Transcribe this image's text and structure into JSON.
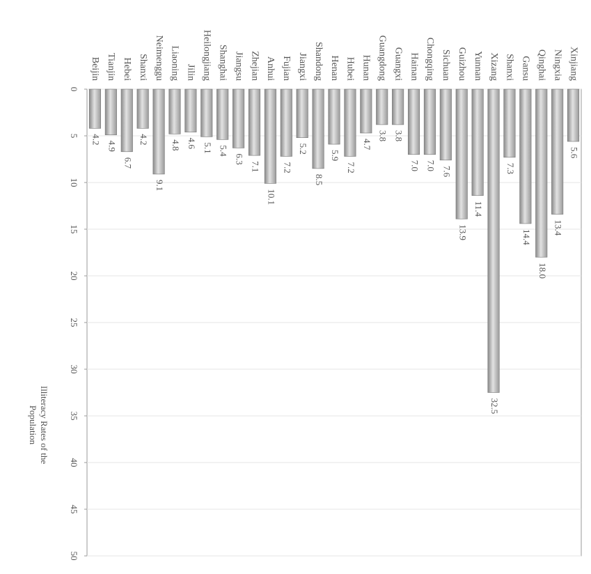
{
  "chart_data": {
    "type": "bar",
    "ylabel": [
      "Illiteracy Rates of the",
      "Population"
    ],
    "categories": [
      "Beijin",
      "Tianjin",
      "Hebei",
      "Shanxi",
      "Neimenggu",
      "Liaoning",
      "Jilin",
      "Heilongjiang",
      "Shanghai",
      "Jiangsu",
      "Zhejian",
      "Anhui",
      "Fujian",
      "Jiangxi",
      "Shandong",
      "Henan",
      "Hubei",
      "Hunan",
      "Guangdong",
      "Guangxi",
      "Hainan",
      "Chongqing",
      "Sichuan",
      "Guizhou",
      "Yunnan",
      "Xizang",
      "Shanxi",
      "Gansu",
      "Qinghai",
      "Ningxia",
      "Xinjiang"
    ],
    "values": [
      4.2,
      4.9,
      6.7,
      4.2,
      9.1,
      4.8,
      4.6,
      5.1,
      5.4,
      6.3,
      7.1,
      10.1,
      7.2,
      5.2,
      8.5,
      5.9,
      7.2,
      4.7,
      3.8,
      3.8,
      7.0,
      7.0,
      7.6,
      13.9,
      11.4,
      32.5,
      7.3,
      14.4,
      18.0,
      13.4,
      5.6
    ],
    "value_labels": [
      "4.2",
      "4.9",
      "6.7",
      "4.2",
      "9.1",
      "4.8",
      "4.6",
      "5.1",
      "5.4",
      "6.3",
      "7.1",
      "10.1",
      "7.2",
      "5.2",
      "8.5",
      "5.9",
      "7.2",
      "4.7",
      "3.8",
      "3.8",
      "7.0",
      "7.0",
      "7.6",
      "13.9",
      "11.4",
      "32.5",
      "7.3",
      "14.4",
      "18.0",
      "13.4",
      "5.6"
    ],
    "color": "#bdbdbd",
    "ylim": [
      0,
      50
    ],
    "yticks": [
      0,
      5,
      10,
      15,
      20,
      25,
      30,
      35,
      40,
      45,
      50
    ],
    "grid": true
  }
}
